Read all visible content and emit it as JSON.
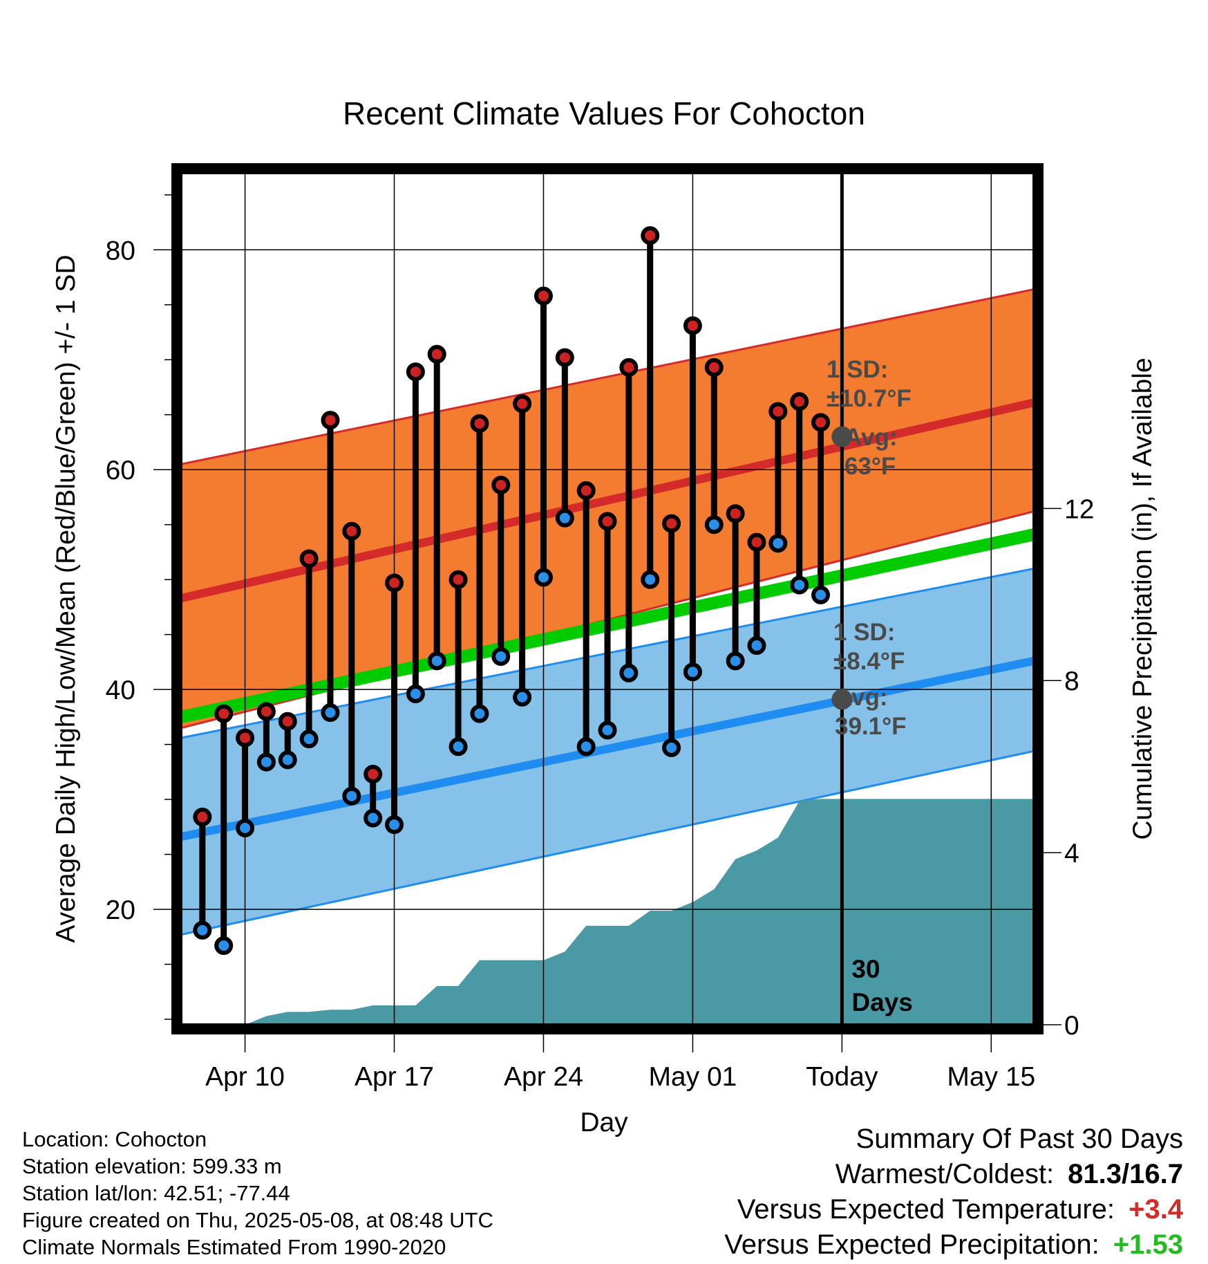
{
  "chart_data": {
    "type": "line",
    "title": "Recent Climate Values For Cohocton",
    "xlabel": "Day",
    "ylabel": "Average Daily High/Low/Mean (Red/Blue/Green) +/- 1 SD",
    "y2label": "Cumulative Precipitation (in), If Available",
    "x_tick_labels": [
      "Apr 10",
      "Apr 17",
      "Apr 24",
      "May 01",
      "Today",
      "May 15"
    ],
    "x_tick_dates": [
      "2025-04-10",
      "2025-04-17",
      "2025-04-24",
      "2025-05-01",
      "2025-05-08",
      "2025-05-15"
    ],
    "xlim": [
      "2025-04-07",
      "2025-05-17"
    ],
    "ylim": [
      9.5,
      87
    ],
    "y_ticks": [
      20,
      40,
      60,
      80
    ],
    "y2lim": [
      0,
      19.8
    ],
    "y2_ticks": [
      0,
      4,
      8,
      12
    ],
    "grid": true,
    "today_marker": {
      "date": "2025-05-08",
      "label_line1": "30",
      "label_line2": "Days"
    },
    "normals": {
      "dates": [
        "2025-04-07",
        "2025-05-17"
      ],
      "high_mean": [
        48.3,
        66.1
      ],
      "high_sd_upper": [
        60.5,
        76.4
      ],
      "high_sd_lower": [
        36.5,
        56.2
      ],
      "mean": [
        37.5,
        54.1
      ],
      "low_mean": [
        26.6,
        42.6
      ],
      "low_sd_upper": [
        35.6,
        51.0
      ],
      "low_sd_lower": [
        17.7,
        34.4
      ]
    },
    "high_annotation": {
      "sd_label": "1 SD:",
      "sd_value": "±10.7°F",
      "avg_label": "Avg:",
      "avg_value": "63°F",
      "avg": 63
    },
    "low_annotation": {
      "sd_label": "1 SD:",
      "sd_value": "±8.4°F",
      "avg_label": "Avg:",
      "avg_value": "39.1°F",
      "avg": 39.1
    },
    "observed": {
      "dates": [
        "2025-04-08",
        "2025-04-09",
        "2025-04-10",
        "2025-04-11",
        "2025-04-12",
        "2025-04-13",
        "2025-04-14",
        "2025-04-15",
        "2025-04-16",
        "2025-04-17",
        "2025-04-18",
        "2025-04-19",
        "2025-04-20",
        "2025-04-21",
        "2025-04-22",
        "2025-04-23",
        "2025-04-24",
        "2025-04-25",
        "2025-04-26",
        "2025-04-27",
        "2025-04-28",
        "2025-04-29",
        "2025-04-30",
        "2025-05-01",
        "2025-05-02",
        "2025-05-03",
        "2025-05-04",
        "2025-05-05",
        "2025-05-06",
        "2025-05-07"
      ],
      "high": [
        28.4,
        37.8,
        35.6,
        38.0,
        37.1,
        51.9,
        64.5,
        54.4,
        32.3,
        49.7,
        68.9,
        70.5,
        50.0,
        64.2,
        58.6,
        66.0,
        75.8,
        70.2,
        58.1,
        55.3,
        69.3,
        81.3,
        55.1,
        73.1,
        69.3,
        56.0,
        53.4,
        65.3,
        66.2,
        64.3
      ],
      "low": [
        18.1,
        16.7,
        27.4,
        33.4,
        33.6,
        35.5,
        37.9,
        30.3,
        28.3,
        27.7,
        39.6,
        42.6,
        34.8,
        37.8,
        43.0,
        39.3,
        50.2,
        55.6,
        34.8,
        36.3,
        41.5,
        50.0,
        34.7,
        41.6,
        55.0,
        42.6,
        44.0,
        53.3,
        49.5,
        48.6
      ]
    },
    "precipitation": {
      "dates": [
        "2025-04-08",
        "2025-04-09",
        "2025-04-10",
        "2025-04-11",
        "2025-04-12",
        "2025-04-13",
        "2025-04-14",
        "2025-04-15",
        "2025-04-16",
        "2025-04-17",
        "2025-04-18",
        "2025-04-19",
        "2025-04-20",
        "2025-04-21",
        "2025-04-22",
        "2025-04-23",
        "2025-04-24",
        "2025-04-25",
        "2025-04-26",
        "2025-04-27",
        "2025-04-28",
        "2025-04-29",
        "2025-04-30",
        "2025-05-01",
        "2025-05-02",
        "2025-05-03",
        "2025-05-04",
        "2025-05-05",
        "2025-05-06",
        "2025-05-07",
        "2025-05-08",
        "2025-05-17"
      ],
      "cumulative": [
        0,
        0,
        0,
        0.2,
        0.3,
        0.3,
        0.35,
        0.35,
        0.45,
        0.45,
        0.45,
        0.9,
        0.9,
        1.5,
        1.5,
        1.5,
        1.5,
        1.7,
        2.3,
        2.3,
        2.3,
        2.65,
        2.65,
        2.85,
        3.15,
        3.85,
        4.05,
        4.35,
        5.2,
        5.25,
        5.25,
        5.25
      ]
    }
  },
  "colors": {
    "high_band": "#f47c30",
    "high_line": "#d42a2a",
    "high_marker": "#cc2222",
    "low_band": "#85c1e8",
    "low_line": "#1e8cf0",
    "low_marker": "#2a8fe8",
    "mean_line": "#00cc00",
    "precip_fill": "#4a9aa6",
    "annotation_text": "#4a4a4a",
    "positive_temp": "#d42a2a",
    "positive_precip": "#22bb22"
  },
  "footer": {
    "location": "Location: Cohocton",
    "elevation": "Station elevation: 599.33 m",
    "latlon": "Station lat/lon: 42.51; -77.44",
    "created": "Figure created on Thu, 2025-05-08, at 08:48 UTC",
    "normals": "Climate Normals Estimated From 1990-2020"
  },
  "summary": {
    "title": "Summary Of Past 30 Days",
    "warm_cold_label": "Warmest/Coldest:",
    "warm_cold_value": "81.3/16.7",
    "temp_label": "Versus Expected Temperature:",
    "temp_value": "+3.4",
    "precip_label": "Versus Expected Precipitation:",
    "precip_value": "+1.53"
  }
}
